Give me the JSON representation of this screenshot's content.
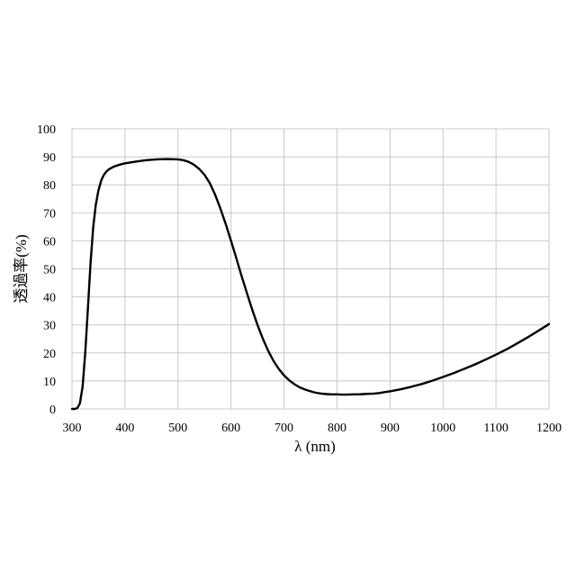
{
  "chart_data": {
    "type": "line",
    "title": "",
    "xlabel": "λ (nm)",
    "ylabel": "透過率(%)",
    "xlim": [
      300,
      1200
    ],
    "ylim": [
      0,
      100
    ],
    "x_ticks": [
      300,
      400,
      500,
      600,
      700,
      800,
      900,
      1000,
      1100,
      1200
    ],
    "y_ticks": [
      0,
      10,
      20,
      30,
      40,
      50,
      60,
      70,
      80,
      90,
      100
    ],
    "grid": true,
    "legend": "none",
    "series": [
      {
        "color": "#000000",
        "x": [
          300,
          305,
          310,
          315,
          320,
          325,
          330,
          335,
          340,
          345,
          350,
          355,
          360,
          365,
          370,
          380,
          390,
          400,
          420,
          440,
          460,
          480,
          500,
          510,
          520,
          530,
          540,
          550,
          560,
          570,
          580,
          590,
          600,
          610,
          620,
          630,
          640,
          650,
          660,
          670,
          680,
          690,
          700,
          710,
          720,
          730,
          740,
          750,
          760,
          770,
          780,
          790,
          800,
          810,
          820,
          830,
          840,
          850,
          860,
          870,
          880,
          890,
          900,
          920,
          940,
          960,
          980,
          1000,
          1020,
          1040,
          1060,
          1080,
          1100,
          1120,
          1140,
          1160,
          1180,
          1200
        ],
        "y": [
          0,
          0,
          0.3,
          2,
          8,
          20,
          36,
          52,
          65,
          73,
          78,
          81.5,
          83.5,
          84.8,
          85.6,
          86.6,
          87.2,
          87.7,
          88.3,
          88.8,
          89.1,
          89.2,
          89.1,
          88.8,
          88.2,
          87.2,
          85.7,
          83.6,
          80.6,
          76.5,
          71.5,
          66,
          60,
          53.8,
          47.5,
          41.4,
          35.5,
          30,
          25.1,
          20.8,
          17.2,
          14.3,
          12,
          10.2,
          8.8,
          7.7,
          6.9,
          6.3,
          5.8,
          5.5,
          5.3,
          5.2,
          5.2,
          5.1,
          5.1,
          5.2,
          5.2,
          5.3,
          5.4,
          5.5,
          5.7,
          6,
          6.3,
          7,
          7.9,
          8.9,
          10.1,
          11.4,
          12.8,
          14.3,
          15.9,
          17.6,
          19.4,
          21.3,
          23.4,
          25.6,
          27.9,
          30.3
        ]
      }
    ]
  }
}
